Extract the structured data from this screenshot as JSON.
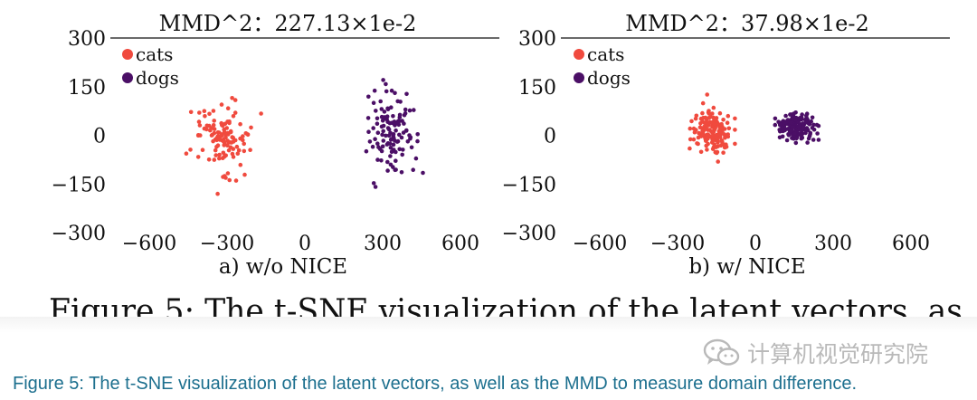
{
  "chart_data": [
    {
      "type": "scatter",
      "title": "MMD^2：227.13×1e-2",
      "caption": "a) w/o NICE",
      "xlim": [
        -750,
        750
      ],
      "ylim": [
        -300,
        300
      ],
      "xticks": [
        "−600",
        "−300",
        "0",
        "300",
        "600"
      ],
      "xtick_values": [
        -600,
        -300,
        0,
        300,
        600
      ],
      "yticks": [
        "300",
        "150",
        "0",
        "−150",
        "−300"
      ],
      "ytick_values": [
        300,
        150,
        0,
        -150,
        -300
      ],
      "legend_position": "top-left",
      "series": [
        {
          "name": "cats",
          "color": "#f04a3e",
          "center": [
            -330,
            -10
          ],
          "spread": [
            115,
            105
          ],
          "count": 120
        },
        {
          "name": "dogs",
          "color": "#4b0f66",
          "center": [
            340,
            10
          ],
          "spread": [
            95,
            120
          ],
          "count": 120
        }
      ]
    },
    {
      "type": "scatter",
      "title": "MMD^2：37.98×1e-2",
      "caption": "b) w/ NICE",
      "xlim": [
        -750,
        750
      ],
      "ylim": [
        -300,
        300
      ],
      "xticks": [
        "−600",
        "−300",
        "0",
        "300",
        "600"
      ],
      "xtick_values": [
        -600,
        -300,
        0,
        300,
        600
      ],
      "yticks": [
        "300",
        "150",
        "0",
        "−150",
        "−300"
      ],
      "ytick_values": [
        300,
        150,
        0,
        -150,
        -300
      ],
      "legend_position": "top-left",
      "series": [
        {
          "name": "cats",
          "color": "#f04a3e",
          "center": [
            -170,
            10
          ],
          "spread": [
            65,
            60
          ],
          "count": 160
        },
        {
          "name": "dogs",
          "color": "#4b0f66",
          "center": [
            160,
            25
          ],
          "spread": [
            60,
            35
          ],
          "count": 170
        }
      ]
    }
  ],
  "figure_caption_partial": "Figure 5: The t-SNE visualization of the latent vectors, as",
  "caption": "Figure 5: The t-SNE visualization of the latent vectors, as well as the MMD to measure domain difference.",
  "watermark": {
    "text": "计算机视觉研究院",
    "icon": "wechat-icon"
  }
}
